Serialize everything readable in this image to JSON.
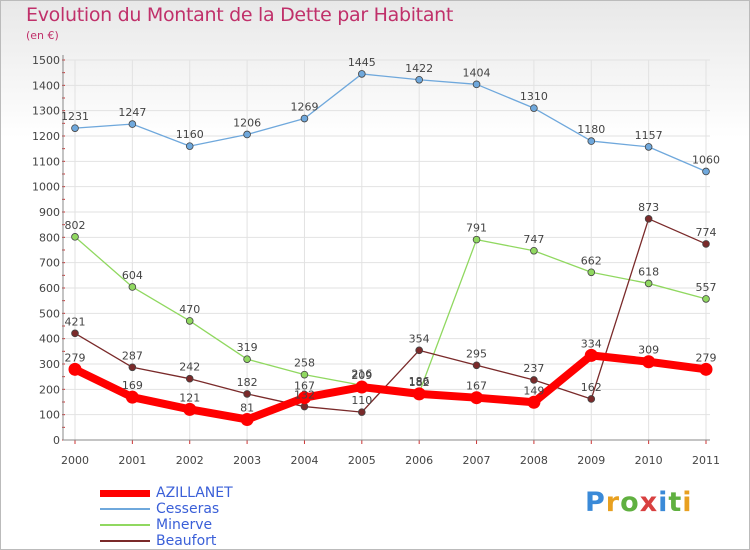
{
  "header": {
    "title": "Evolution du Montant de la Dette par Habitant",
    "subtitle": "(en €)"
  },
  "logo": {
    "text": "Proxiti",
    "letters": [
      "P",
      "r",
      "o",
      "x",
      "i",
      "t",
      "i"
    ]
  },
  "chart_data": {
    "type": "line",
    "title": "Evolution du Montant de la Dette par Habitant",
    "subtitle": "(en €)",
    "x": [
      "2000",
      "2001",
      "2002",
      "2003",
      "2004",
      "2005",
      "2006",
      "2007",
      "2008",
      "2009",
      "2010",
      "2011"
    ],
    "ylim": [
      0,
      1500
    ],
    "yticks": [
      "0",
      "100",
      "200",
      "300",
      "400",
      "500",
      "600",
      "700",
      "800",
      "900",
      "1000",
      "1100",
      "1200",
      "1300",
      "1400",
      "1500"
    ],
    "grid": true,
    "legend_position": "bottom-left",
    "series": [
      {
        "name": "AZILLANET",
        "color": "#ff0000",
        "values": [
          279,
          169,
          121,
          81,
          167,
          209,
          182,
          167,
          149,
          334,
          309,
          279
        ],
        "labels": [
          "279",
          "169",
          "121",
          "81",
          "167",
          "209",
          "182",
          "167",
          "149",
          "334",
          "309",
          "279"
        ]
      },
      {
        "name": "Cesseras",
        "color": "#6fa8dc",
        "values": [
          1231,
          1247,
          1160,
          1206,
          1269,
          1445,
          1422,
          1404,
          1310,
          1180,
          1157,
          1060
        ],
        "labels": [
          "1231",
          "1247",
          "1160",
          "1206",
          "1269",
          "1445",
          "1422",
          "1404",
          "1310",
          "1180",
          "1157",
          "1060"
        ]
      },
      {
        "name": "Minerve",
        "color": "#90d860",
        "values": [
          802,
          604,
          470,
          319,
          258,
          216,
          186,
          791,
          747,
          662,
          618,
          557
        ],
        "labels": [
          "802",
          "604",
          "470",
          "319",
          "258",
          "216",
          "186",
          "791",
          "747",
          "662",
          "618",
          "557"
        ]
      },
      {
        "name": "Beaufort",
        "color": "#7a2a2a",
        "values": [
          421,
          287,
          242,
          182,
          132,
          110,
          354,
          295,
          237,
          162,
          873,
          774
        ],
        "labels": [
          "421",
          "287",
          "242",
          "182",
          "132",
          "110",
          "354",
          "295",
          "237",
          "162",
          "873",
          "774"
        ]
      }
    ]
  }
}
